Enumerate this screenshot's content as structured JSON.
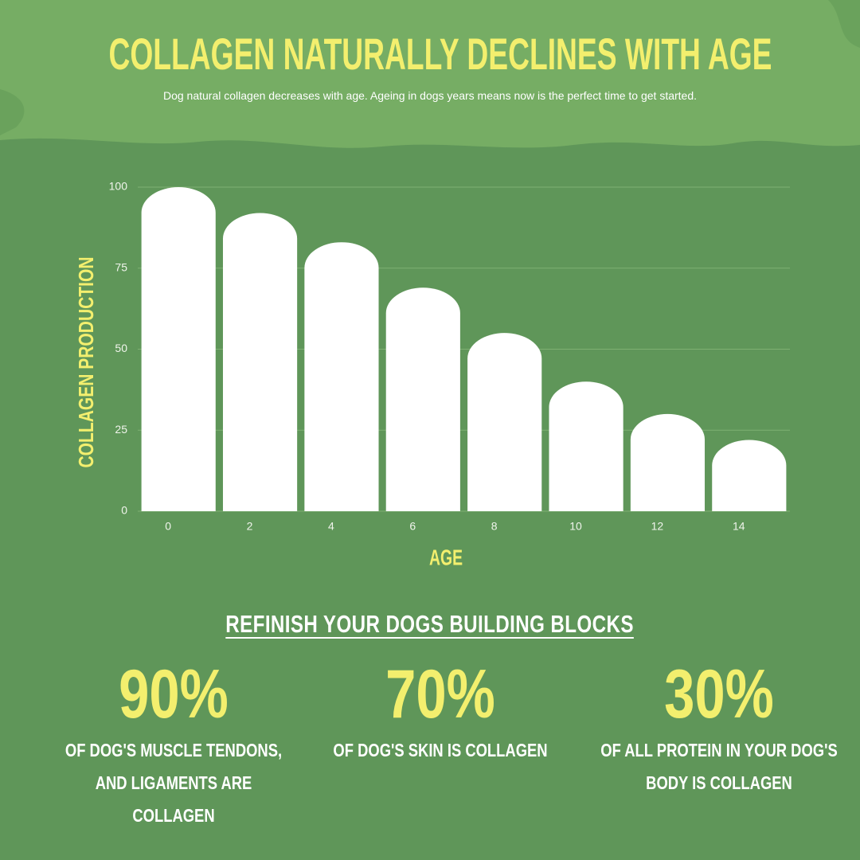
{
  "chart_data": {
    "type": "bar",
    "title": "COLLAGEN NATURALLY DECLINES WITH AGE",
    "subtitle": "Dog natural collagen decreases with age. Ageing in dogs years means now is the perfect time to get started.",
    "x_label": "AGE",
    "y_label": "COLLAGEN PRODUCTION",
    "categories": [
      "0",
      "2",
      "4",
      "6",
      "8",
      "10",
      "12",
      "14"
    ],
    "values": [
      100,
      92,
      83,
      69,
      55,
      40,
      30,
      22
    ],
    "color": "#ffffff",
    "ylim": [
      0,
      100
    ],
    "yticks": [
      0,
      25,
      50,
      75,
      100
    ],
    "grid": true
  },
  "stats_section": {
    "heading": "REFINISH YOUR DOGS BUILDING BLOCKS",
    "items": [
      {
        "figure": "90%",
        "text": "OF DOG'S MUSCLE TENDONS, AND LIGAMENTS ARE COLLAGEN"
      },
      {
        "figure": "70%",
        "text": "OF DOG'S SKIN IS COLLAGEN"
      },
      {
        "figure": "30%",
        "text": "OF ALL PROTEIN IN YOUR DOG'S BODY IS COLLAGEN"
      }
    ]
  }
}
